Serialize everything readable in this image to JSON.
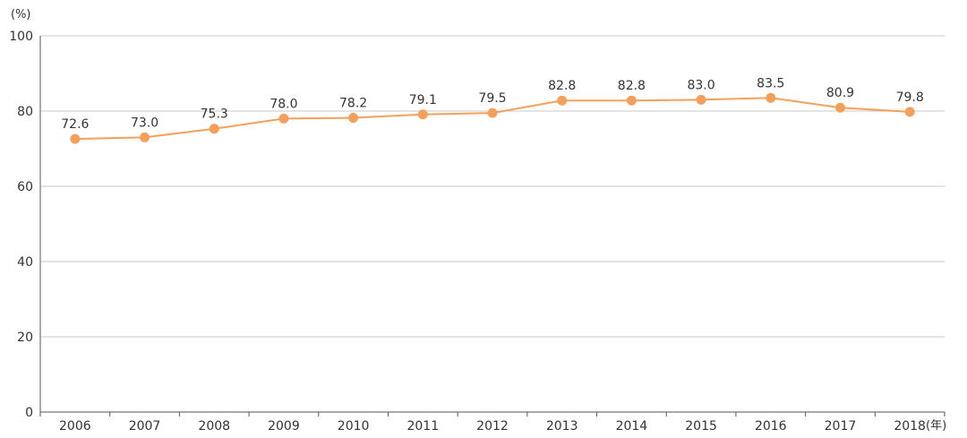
{
  "chart_data": {
    "type": "line",
    "title": "",
    "xlabel": "",
    "ylabel": "",
    "y_unit_label": "(%)",
    "x_unit_label": "(年)",
    "categories": [
      "2006",
      "2007",
      "2008",
      "2009",
      "2010",
      "2011",
      "2012",
      "2013",
      "2014",
      "2015",
      "2016",
      "2017",
      "2018"
    ],
    "series": [
      {
        "values": [
          72.6,
          73.0,
          75.3,
          78.0,
          78.2,
          79.1,
          79.5,
          82.8,
          82.8,
          83.0,
          83.5,
          80.9,
          79.8
        ],
        "labels": [
          "72.6",
          "73.0",
          "75.3",
          "78.0",
          "78.2",
          "79.1",
          "79.5",
          "82.8",
          "82.8",
          "83.0",
          "83.5",
          "80.9",
          "79.8"
        ],
        "color": "#f5a05a"
      }
    ],
    "ylim": [
      0,
      100
    ],
    "yticks": [
      "0",
      "20",
      "40",
      "60",
      "80",
      "100"
    ],
    "grid": true,
    "legend": "none",
    "grid_color": "#c8c8c8",
    "axis_color": "#555555"
  }
}
